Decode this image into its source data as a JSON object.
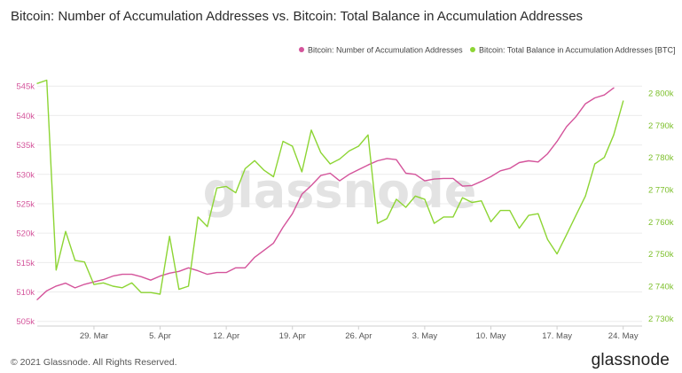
{
  "footer": {
    "copyright": "© 2021 Glassnode. All Rights Reserved.",
    "logo": "glassnode"
  },
  "chart_data": {
    "type": "line",
    "title": "Bitcoin: Number of Accumulation Addresses vs. Bitcoin: Total Balance in Accumulation Addresses",
    "watermark": "glassnode",
    "legend_position": "top-right",
    "grid": {
      "horizontal": true,
      "vertical": false
    },
    "x_ticks": [
      "29. Mar",
      "5. Apr",
      "12. Apr",
      "19. Apr",
      "26. Apr",
      "3. May",
      "10. May",
      "17. May",
      "24. May"
    ],
    "x_range": [
      "2021-03-23",
      "2021-05-26"
    ],
    "y_left": {
      "ticks": [
        "505k",
        "510k",
        "515k",
        "520k",
        "525k",
        "530k",
        "535k",
        "540k",
        "545k"
      ],
      "tick_values": [
        505000,
        510000,
        515000,
        520000,
        525000,
        530000,
        535000,
        540000,
        545000
      ],
      "range": [
        504200,
        548200
      ]
    },
    "y_right": {
      "ticks": [
        "2 730k",
        "2 740k",
        "2 750k",
        "2 760k",
        "2 770k",
        "2 780k",
        "2 790k",
        "2 800k"
      ],
      "tick_values": [
        2730000,
        2740000,
        2750000,
        2760000,
        2770000,
        2780000,
        2790000,
        2800000
      ],
      "range": [
        2727600,
        2808000
      ]
    },
    "series": [
      {
        "name": "Bitcoin: Number of Accumulation Addresses",
        "axis": "left",
        "color": "#d4549b",
        "points": [
          [
            "2021-03-23",
            508700
          ],
          [
            "2021-03-24",
            510200
          ],
          [
            "2021-03-25",
            511000
          ],
          [
            "2021-03-26",
            511500
          ],
          [
            "2021-03-27",
            510700
          ],
          [
            "2021-03-28",
            511300
          ],
          [
            "2021-03-29",
            511700
          ],
          [
            "2021-03-30",
            512100
          ],
          [
            "2021-03-31",
            512700
          ],
          [
            "2021-04-01",
            513000
          ],
          [
            "2021-04-02",
            513000
          ],
          [
            "2021-04-03",
            512600
          ],
          [
            "2021-04-04",
            512000
          ],
          [
            "2021-04-05",
            512700
          ],
          [
            "2021-04-06",
            513200
          ],
          [
            "2021-04-07",
            513500
          ],
          [
            "2021-04-08",
            514100
          ],
          [
            "2021-04-09",
            513600
          ],
          [
            "2021-04-10",
            513000
          ],
          [
            "2021-04-11",
            513300
          ],
          [
            "2021-04-12",
            513300
          ],
          [
            "2021-04-13",
            514100
          ],
          [
            "2021-04-14",
            514100
          ],
          [
            "2021-04-15",
            515900
          ],
          [
            "2021-04-16",
            517100
          ],
          [
            "2021-04-17",
            518300
          ],
          [
            "2021-04-18",
            521000
          ],
          [
            "2021-04-19",
            523300
          ],
          [
            "2021-04-20",
            526600
          ],
          [
            "2021-04-21",
            528100
          ],
          [
            "2021-04-22",
            529800
          ],
          [
            "2021-04-23",
            530200
          ],
          [
            "2021-04-24",
            528900
          ],
          [
            "2021-04-25",
            530000
          ],
          [
            "2021-04-26",
            530800
          ],
          [
            "2021-04-27",
            531600
          ],
          [
            "2021-04-28",
            532300
          ],
          [
            "2021-04-29",
            532700
          ],
          [
            "2021-04-30",
            532500
          ],
          [
            "2021-05-01",
            530200
          ],
          [
            "2021-05-02",
            530000
          ],
          [
            "2021-05-03",
            528900
          ],
          [
            "2021-05-04",
            529200
          ],
          [
            "2021-05-05",
            529300
          ],
          [
            "2021-05-06",
            529300
          ],
          [
            "2021-05-07",
            528000
          ],
          [
            "2021-05-08",
            528100
          ],
          [
            "2021-05-09",
            528800
          ],
          [
            "2021-05-10",
            529600
          ],
          [
            "2021-05-11",
            530600
          ],
          [
            "2021-05-12",
            531000
          ],
          [
            "2021-05-13",
            532000
          ],
          [
            "2021-05-14",
            532300
          ],
          [
            "2021-05-15",
            532100
          ],
          [
            "2021-05-16",
            533500
          ],
          [
            "2021-05-17",
            535600
          ],
          [
            "2021-05-18",
            538100
          ],
          [
            "2021-05-19",
            539800
          ],
          [
            "2021-05-20",
            542000
          ],
          [
            "2021-05-21",
            543000
          ],
          [
            "2021-05-22",
            543500
          ],
          [
            "2021-05-23",
            544700
          ]
        ]
      },
      {
        "name": "Bitcoin: Total Balance in Accumulation Addresses [BTC]",
        "axis": "right",
        "color": "#8dd534",
        "points": [
          [
            "2021-03-23",
            2803000
          ],
          [
            "2021-03-24",
            2804000
          ],
          [
            "2021-03-25",
            2745000
          ],
          [
            "2021-03-26",
            2757000
          ],
          [
            "2021-03-27",
            2748000
          ],
          [
            "2021-03-28",
            2747500
          ],
          [
            "2021-03-29",
            2740500
          ],
          [
            "2021-03-30",
            2741000
          ],
          [
            "2021-03-31",
            2740000
          ],
          [
            "2021-04-01",
            2739500
          ],
          [
            "2021-04-02",
            2741000
          ],
          [
            "2021-04-03",
            2738000
          ],
          [
            "2021-04-04",
            2738000
          ],
          [
            "2021-04-05",
            2737500
          ],
          [
            "2021-04-06",
            2755500
          ],
          [
            "2021-04-07",
            2739000
          ],
          [
            "2021-04-08",
            2740000
          ],
          [
            "2021-04-09",
            2761500
          ],
          [
            "2021-04-10",
            2758500
          ],
          [
            "2021-04-11",
            2770500
          ],
          [
            "2021-04-12",
            2771000
          ],
          [
            "2021-04-13",
            2769000
          ],
          [
            "2021-04-14",
            2776500
          ],
          [
            "2021-04-15",
            2779000
          ],
          [
            "2021-04-16",
            2776000
          ],
          [
            "2021-04-17",
            2774000
          ],
          [
            "2021-04-18",
            2785000
          ],
          [
            "2021-04-19",
            2783500
          ],
          [
            "2021-04-20",
            2775500
          ],
          [
            "2021-04-21",
            2788500
          ],
          [
            "2021-04-22",
            2781500
          ],
          [
            "2021-04-23",
            2778000
          ],
          [
            "2021-04-24",
            2779500
          ],
          [
            "2021-04-25",
            2782000
          ],
          [
            "2021-04-26",
            2783500
          ],
          [
            "2021-04-27",
            2787000
          ],
          [
            "2021-04-28",
            2759500
          ],
          [
            "2021-04-29",
            2761000
          ],
          [
            "2021-04-30",
            2767000
          ],
          [
            "2021-05-01",
            2764500
          ],
          [
            "2021-05-02",
            2768000
          ],
          [
            "2021-05-03",
            2767000
          ],
          [
            "2021-05-04",
            2759500
          ],
          [
            "2021-05-05",
            2761500
          ],
          [
            "2021-05-06",
            2761500
          ],
          [
            "2021-05-07",
            2767500
          ],
          [
            "2021-05-08",
            2766000
          ],
          [
            "2021-05-09",
            2766500
          ],
          [
            "2021-05-10",
            2760000
          ],
          [
            "2021-05-11",
            2763500
          ],
          [
            "2021-05-12",
            2763500
          ],
          [
            "2021-05-13",
            2758000
          ],
          [
            "2021-05-14",
            2762000
          ],
          [
            "2021-05-15",
            2762500
          ],
          [
            "2021-05-16",
            2754500
          ],
          [
            "2021-05-17",
            2750000
          ],
          [
            "2021-05-18",
            2756000
          ],
          [
            "2021-05-19",
            2762000
          ],
          [
            "2021-05-20",
            2768000
          ],
          [
            "2021-05-21",
            2778000
          ],
          [
            "2021-05-22",
            2780000
          ],
          [
            "2021-05-23",
            2787000
          ],
          [
            "2021-05-24",
            2797500
          ]
        ]
      }
    ]
  }
}
